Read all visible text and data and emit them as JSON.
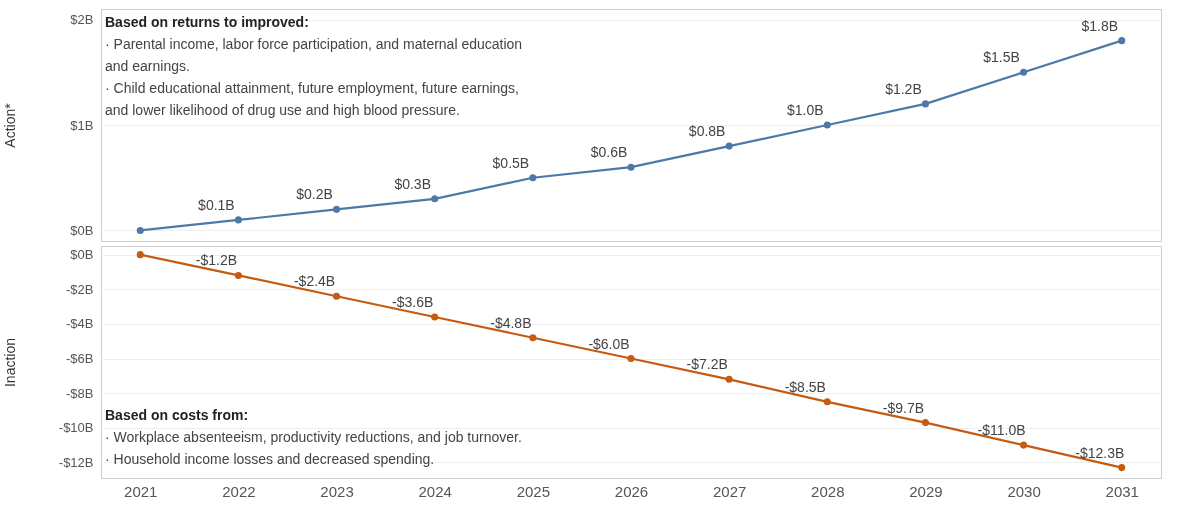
{
  "chart_data": [
    {
      "type": "line",
      "ylabel": "Action*",
      "categories": [
        "2021",
        "2022",
        "2023",
        "2024",
        "2025",
        "2026",
        "2027",
        "2028",
        "2029",
        "2030",
        "2031"
      ],
      "series": [
        {
          "color": "#4e79a7",
          "values": [
            0,
            0.1,
            0.2,
            0.3,
            0.5,
            0.6,
            0.8,
            1.0,
            1.2,
            1.5,
            1.8
          ],
          "value_labels": [
            null,
            "$0.1B",
            "$0.2B",
            "$0.3B",
            "$0.5B",
            "$0.6B",
            "$0.8B",
            "$1.0B",
            "$1.2B",
            "$1.5B",
            "$1.8B"
          ]
        }
      ],
      "ylim": [
        -0.1,
        2.1
      ],
      "yticks": [
        {
          "value": 0,
          "label": "$0B"
        },
        {
          "value": 1,
          "label": "$1B"
        },
        {
          "value": 2,
          "label": "$2B"
        }
      ],
      "annotations": [
        "Based on returns to improved:",
        "· Parental income, labor force participation, and maternal education\nand earnings.\n· Child educational attainment, future employment, future earnings,\nand lower likelihood of drug use and high blood pressure."
      ],
      "grid": "y",
      "marker": "circle",
      "tick_labels": "y"
    },
    {
      "type": "line",
      "ylabel": "Inaction",
      "categories": [
        "2021",
        "2022",
        "2023",
        "2024",
        "2025",
        "2026",
        "2027",
        "2028",
        "2029",
        "2030",
        "2031"
      ],
      "series": [
        {
          "color": "#c55a11",
          "values": [
            0,
            -1.2,
            -2.4,
            -3.6,
            -4.8,
            -6.0,
            -7.2,
            -8.5,
            -9.7,
            -11.0,
            -12.3
          ],
          "value_labels": [
            null,
            "-$1.2B",
            "-$2.4B",
            "-$3.6B",
            "-$4.8B",
            "-$6.0B",
            "-$7.2B",
            "-$8.5B",
            "-$9.7B",
            "-$11.0B",
            "-$12.3B"
          ]
        }
      ],
      "ylim": [
        -12.9,
        0.5
      ],
      "yticks": [
        {
          "value": 0,
          "label": "$0B"
        },
        {
          "value": -2,
          "label": "-$2B"
        },
        {
          "value": -4,
          "label": "-$4B"
        },
        {
          "value": -6,
          "label": "-$6B"
        },
        {
          "value": -8,
          "label": "-$8B"
        },
        {
          "value": -10,
          "label": "-$10B"
        },
        {
          "value": -12,
          "label": "-$12B"
        }
      ],
      "annotations": [
        "Based on costs from:",
        "· Workplace absenteeism, productivity reductions, and job turnover.\n· Household income losses and decreased spending."
      ],
      "grid": "y",
      "marker": "circle"
    }
  ]
}
